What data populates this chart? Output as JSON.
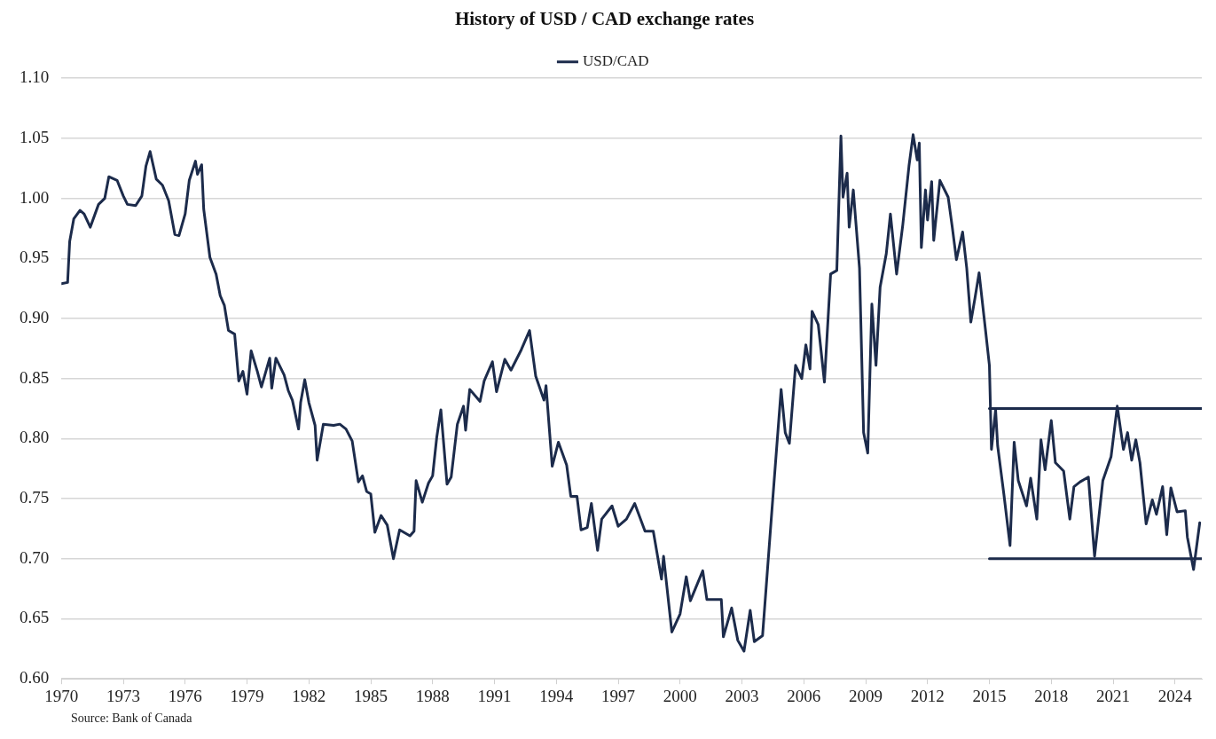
{
  "chart_data": {
    "type": "line",
    "title": "History of USD / CAD exchange rates",
    "xlim": [
      1970,
      2025.3
    ],
    "xticks": [
      1970,
      1973,
      1976,
      1979,
      1982,
      1985,
      1988,
      1991,
      1994,
      1997,
      2000,
      2003,
      2006,
      2009,
      2012,
      2015,
      2018,
      2021,
      2024
    ],
    "ylim": [
      0.6,
      1.1
    ],
    "yticks": [
      {
        "value": 0.6,
        "label": "0.60"
      },
      {
        "value": 0.65,
        "label": "0.65"
      },
      {
        "value": 0.7,
        "label": "0.70"
      },
      {
        "value": 0.75,
        "label": "0.75"
      },
      {
        "value": 0.8,
        "label": "0.80"
      },
      {
        "value": 0.85,
        "label": "0.85"
      },
      {
        "value": 0.9,
        "label": "0.90"
      },
      {
        "value": 0.95,
        "label": "0.95"
      },
      {
        "value": 1.0,
        "label": "1.00"
      },
      {
        "value": 1.05,
        "label": "1.05"
      },
      {
        "value": 1.1,
        "label": "1.10"
      }
    ],
    "grid": "y",
    "legend": "top",
    "marker": "none",
    "line_style": "solid",
    "annotations": [
      "Source: Bank of Canada"
    ],
    "series": [
      {
        "name": "USD/CAD",
        "color": "#1c2b4b",
        "x": [
          1970.0,
          1970.3,
          1970.4,
          1970.6,
          1970.9,
          1971.1,
          1971.4,
          1971.8,
          1972.1,
          1972.3,
          1972.7,
          1973.0,
          1973.2,
          1973.6,
          1973.9,
          1974.1,
          1974.3,
          1974.6,
          1974.9,
          1975.2,
          1975.5,
          1975.7,
          1976.0,
          1976.2,
          1976.5,
          1976.6,
          1976.8,
          1976.9,
          1977.2,
          1977.5,
          1977.7,
          1977.9,
          1978.1,
          1978.4,
          1978.6,
          1978.8,
          1979.0,
          1979.2,
          1979.5,
          1979.7,
          1980.1,
          1980.2,
          1980.4,
          1980.8,
          1981.0,
          1981.2,
          1981.5,
          1981.6,
          1981.8,
          1982.0,
          1982.3,
          1982.4,
          1982.7,
          1983.2,
          1983.5,
          1983.8,
          1984.1,
          1984.4,
          1984.6,
          1984.8,
          1985.0,
          1985.2,
          1985.5,
          1985.8,
          1986.1,
          1986.4,
          1986.9,
          1987.1,
          1987.2,
          1987.5,
          1987.8,
          1988.0,
          1988.2,
          1988.4,
          1988.7,
          1988.9,
          1989.2,
          1989.5,
          1989.6,
          1989.8,
          1990.3,
          1990.5,
          1990.9,
          1991.1,
          1991.5,
          1991.8,
          1992.3,
          1992.7,
          1993.0,
          1993.4,
          1993.5,
          1993.8,
          1994.1,
          1994.5,
          1994.7,
          1995.0,
          1995.2,
          1995.5,
          1995.7,
          1996.0,
          1996.2,
          1996.7,
          1997.0,
          1997.4,
          1997.8,
          1998.3,
          1998.7,
          1999.1,
          1999.2,
          1999.6,
          2000.0,
          2000.3,
          2000.5,
          2001.1,
          2001.3,
          2002.0,
          2002.1,
          2002.5,
          2002.8,
          2003.1,
          2003.4,
          2003.6,
          2004.0,
          2004.5,
          2004.9,
          2005.1,
          2005.3,
          2005.6,
          2005.9,
          2006.1,
          2006.3,
          2006.4,
          2006.7,
          2007.0,
          2007.3,
          2007.6,
          2007.8,
          2007.9,
          2008.1,
          2008.2,
          2008.4,
          2008.7,
          2008.9,
          2009.1,
          2009.3,
          2009.5,
          2009.7,
          2010.0,
          2010.2,
          2010.5,
          2010.8,
          2011.1,
          2011.3,
          2011.5,
          2011.6,
          2011.7,
          2011.9,
          2012.0,
          2012.2,
          2012.3,
          2012.6,
          2013.0,
          2013.2,
          2013.4,
          2013.7,
          2013.9,
          2014.1,
          2014.3,
          2014.5,
          2014.8,
          2015.0,
          2015.1,
          2015.3,
          2015.4,
          2015.7,
          2016.0,
          2016.2,
          2016.4,
          2016.8,
          2017.0,
          2017.3,
          2017.5,
          2017.7,
          2018.0,
          2018.2,
          2018.6,
          2018.9,
          2019.1,
          2019.4,
          2019.8,
          2020.1,
          2020.5,
          2020.9,
          2021.2,
          2021.5,
          2021.7,
          2021.9,
          2022.1,
          2022.3,
          2022.6,
          2022.9,
          2023.1,
          2023.4,
          2023.6,
          2023.8,
          2024.1,
          2024.5,
          2024.6,
          2024.9,
          2025.2
        ],
        "values": [
          0.929,
          0.93,
          0.964,
          0.983,
          0.99,
          0.987,
          0.976,
          0.995,
          1.0,
          1.018,
          1.015,
          1.002,
          0.995,
          0.994,
          1.002,
          1.027,
          1.039,
          1.016,
          1.011,
          0.998,
          0.97,
          0.969,
          0.987,
          1.015,
          1.031,
          1.02,
          1.028,
          0.991,
          0.951,
          0.937,
          0.919,
          0.911,
          0.89,
          0.887,
          0.848,
          0.856,
          0.837,
          0.873,
          0.856,
          0.843,
          0.867,
          0.842,
          0.867,
          0.853,
          0.84,
          0.832,
          0.808,
          0.83,
          0.849,
          0.83,
          0.811,
          0.782,
          0.812,
          0.811,
          0.812,
          0.808,
          0.798,
          0.764,
          0.769,
          0.756,
          0.754,
          0.722,
          0.736,
          0.728,
          0.7,
          0.724,
          0.719,
          0.723,
          0.765,
          0.747,
          0.763,
          0.769,
          0.801,
          0.824,
          0.762,
          0.768,
          0.812,
          0.827,
          0.807,
          0.841,
          0.831,
          0.848,
          0.864,
          0.839,
          0.866,
          0.857,
          0.874,
          0.89,
          0.852,
          0.832,
          0.844,
          0.777,
          0.797,
          0.778,
          0.752,
          0.752,
          0.724,
          0.726,
          0.746,
          0.707,
          0.733,
          0.744,
          0.727,
          0.733,
          0.746,
          0.723,
          0.723,
          0.683,
          0.702,
          0.639,
          0.654,
          0.685,
          0.665,
          0.69,
          0.666,
          0.666,
          0.635,
          0.659,
          0.632,
          0.623,
          0.657,
          0.631,
          0.636,
          0.751,
          0.841,
          0.805,
          0.796,
          0.861,
          0.85,
          0.878,
          0.858,
          0.906,
          0.895,
          0.847,
          0.937,
          0.94,
          1.052,
          1.001,
          1.021,
          0.976,
          1.007,
          0.942,
          0.805,
          0.788,
          0.912,
          0.861,
          0.926,
          0.954,
          0.987,
          0.937,
          0.978,
          1.027,
          1.053,
          1.032,
          1.046,
          0.959,
          1.007,
          0.982,
          1.014,
          0.965,
          1.015,
          1.001,
          0.976,
          0.949,
          0.972,
          0.942,
          0.897,
          0.917,
          0.938,
          0.892,
          0.861,
          0.791,
          0.824,
          0.794,
          0.754,
          0.711,
          0.797,
          0.765,
          0.744,
          0.767,
          0.733,
          0.799,
          0.774,
          0.815,
          0.78,
          0.773,
          0.733,
          0.76,
          0.764,
          0.768,
          0.702,
          0.765,
          0.785,
          0.827,
          0.791,
          0.805,
          0.782,
          0.799,
          0.78,
          0.729,
          0.749,
          0.737,
          0.76,
          0.72,
          0.759,
          0.739,
          0.74,
          0.718,
          0.691,
          0.73
        ]
      },
      {
        "color": "#1c2b4b",
        "x": [
          2015.0,
          2025.3
        ],
        "values": [
          0.825,
          0.825
        ]
      },
      {
        "color": "#1c2b4b",
        "x": [
          2015.0,
          2025.3
        ],
        "values": [
          0.7,
          0.7
        ]
      }
    ]
  }
}
